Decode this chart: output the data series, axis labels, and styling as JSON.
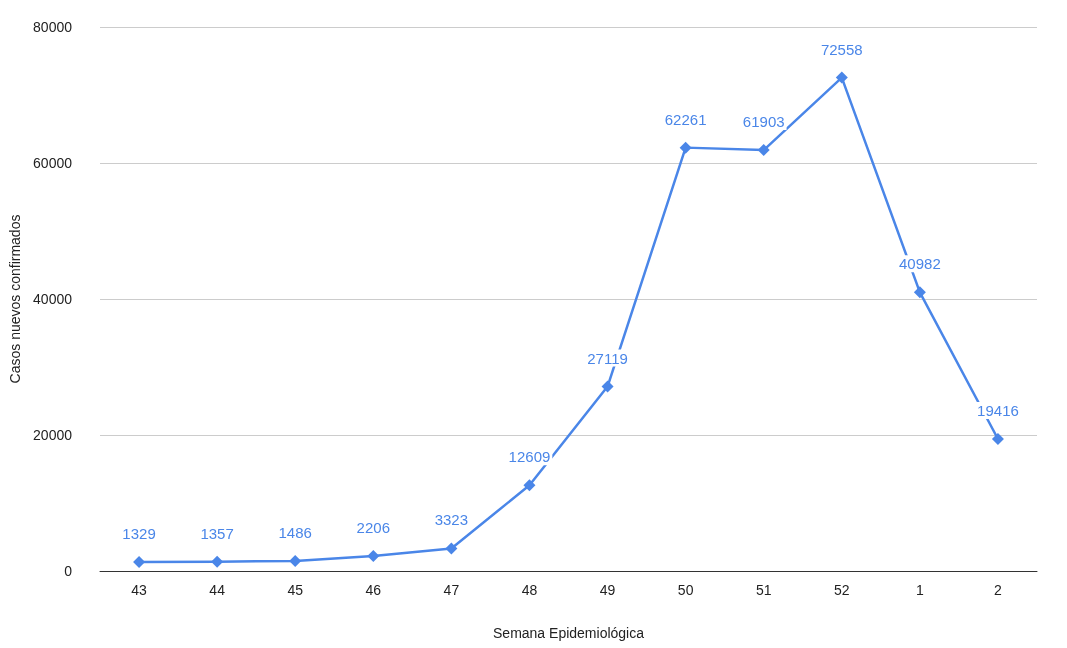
{
  "chart_data": {
    "type": "line",
    "xlabel": "Semana Epidemiológica",
    "ylabel": "Casos nuevos confirmados",
    "categories": [
      "43",
      "44",
      "45",
      "46",
      "47",
      "48",
      "49",
      "50",
      "51",
      "52",
      "1",
      "2"
    ],
    "series": [
      {
        "color": "#4a86e8",
        "values": [
          1329,
          1357,
          1486,
          2206,
          3323,
          12609,
          27119,
          62261,
          61903,
          72558,
          40982,
          19416
        ]
      }
    ],
    "ylim": [
      0,
      80000
    ],
    "yticks": [
      0,
      20000,
      40000,
      60000,
      80000
    ],
    "grid": "y",
    "marker": "diamond",
    "line_style": "solid",
    "data_labels": true
  }
}
